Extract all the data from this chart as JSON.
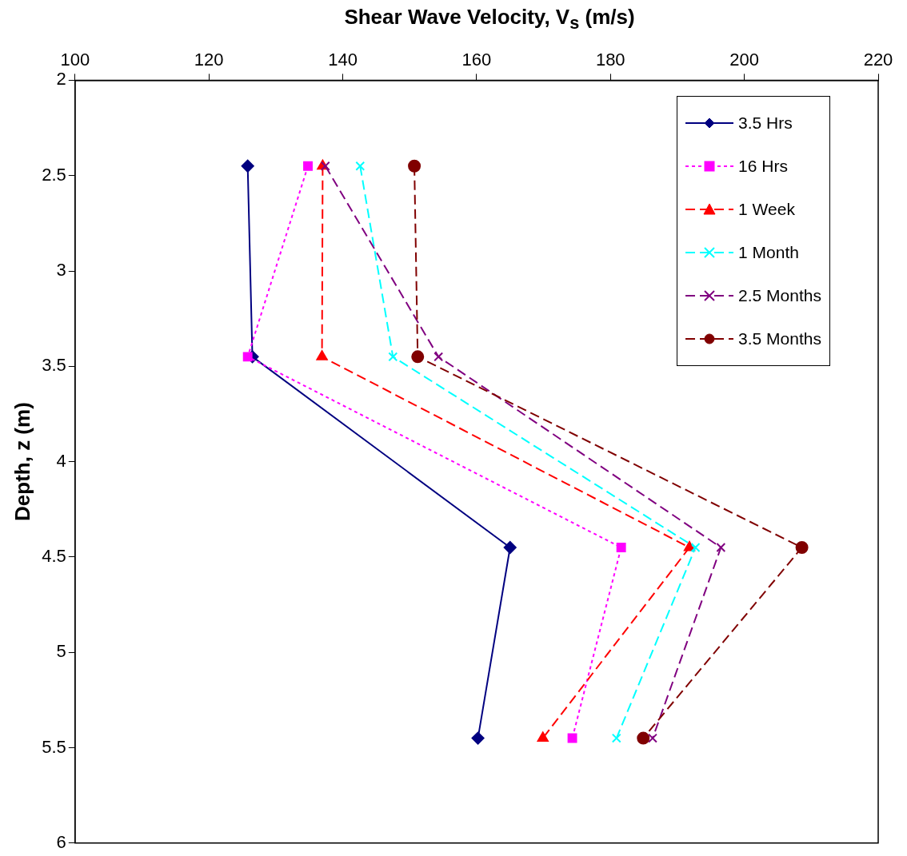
{
  "chart_data": {
    "type": "line",
    "xlabel": "Shear Wave Velocity, V$_{s}$ (m/s)",
    "ylabel": "Depth, z (m)",
    "xlim": [
      100,
      220
    ],
    "xticks": [
      100,
      120,
      140,
      160,
      180,
      200,
      220
    ],
    "ylim": [
      6,
      2
    ],
    "yticks": [
      2,
      2.5,
      3,
      3.5,
      4,
      4.5,
      5,
      5.5,
      6
    ],
    "grid": false,
    "legend": "top right",
    "series": [
      {
        "name": "3.5 Hrs",
        "color": "#000080",
        "marker": "diamond",
        "line_style": "solid",
        "x": [
          125.8,
          126.5,
          165.0,
          160.2
        ],
        "values": [
          2.45,
          3.45,
          4.45,
          5.45
        ]
      },
      {
        "name": "16 Hrs",
        "color": "#ff00ff",
        "marker": "square",
        "line_style": "dotted",
        "x": [
          134.8,
          125.8,
          181.6,
          174.3
        ],
        "values": [
          2.45,
          3.45,
          4.45,
          5.45
        ]
      },
      {
        "name": "1 Week",
        "color": "#ff0000",
        "marker": "triangle",
        "line_style": "dashed",
        "x": [
          137.0,
          136.9,
          191.8,
          169.9
        ],
        "values": [
          2.45,
          3.45,
          4.45,
          5.45
        ]
      },
      {
        "name": "1 Month",
        "color": "#00ffff",
        "marker": "cross",
        "line_style": "dashed",
        "x": [
          142.6,
          147.5,
          192.7,
          180.9
        ],
        "values": [
          2.45,
          3.45,
          4.45,
          5.45
        ]
      },
      {
        "name": "2.5 Months",
        "color": "#800080",
        "marker": "cross",
        "line_style": "dashed",
        "x": [
          137.4,
          154.3,
          196.5,
          186.3
        ],
        "values": [
          2.45,
          3.45,
          4.45,
          5.45
        ]
      },
      {
        "name": "3.5 Months",
        "color": "#800000",
        "marker": "circle",
        "line_style": "dashed",
        "x": [
          150.7,
          151.2,
          208.6,
          184.9
        ],
        "values": [
          2.45,
          3.45,
          4.45,
          5.45
        ]
      }
    ]
  }
}
